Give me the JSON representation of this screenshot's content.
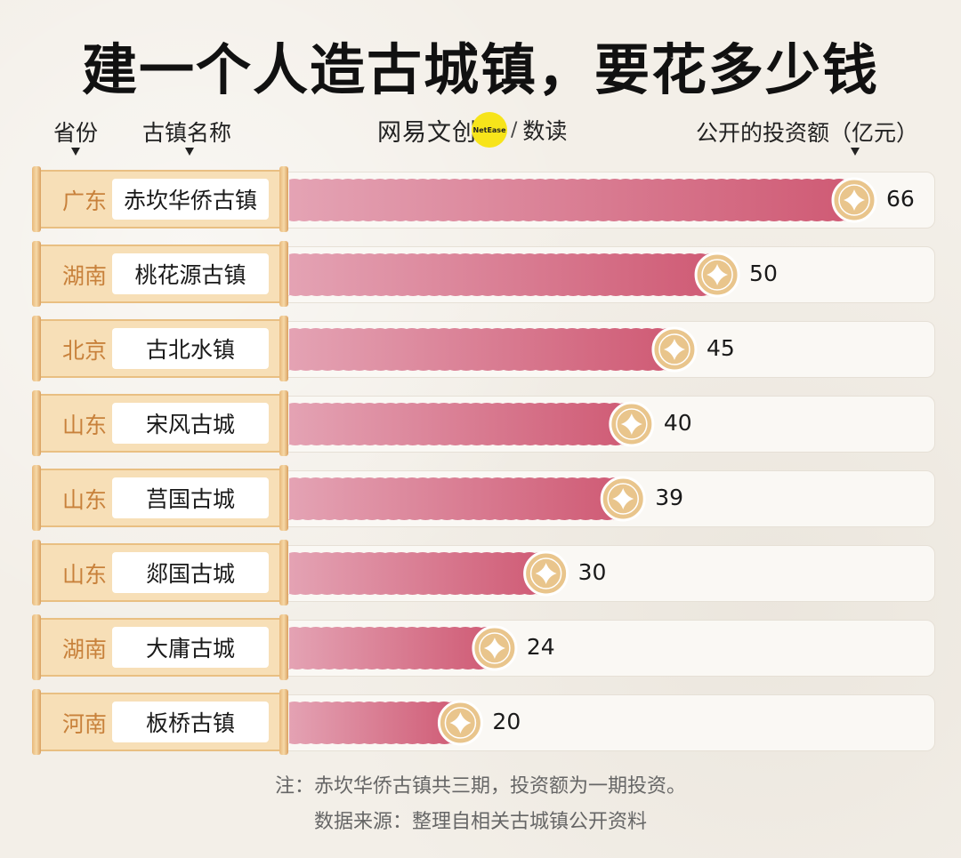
{
  "title": "建一个人造古城镇，要花多少钱",
  "headers": {
    "province": "省份",
    "town_name": "古镇名称",
    "investment": "公开的投资额（亿元）"
  },
  "brand": {
    "name": "网易文创",
    "badge": "NetEase",
    "slash": "/",
    "sub": "数读"
  },
  "colors": {
    "bar_light": "#e4a3b4",
    "bar_dark": "#cf5a74",
    "coin": "#e9c58c",
    "province_text": "#c8813b"
  },
  "chart_data": {
    "type": "bar",
    "orientation": "horizontal",
    "title": "建一个人造古城镇，要花多少钱",
    "categories": [
      "赤坎华侨古镇",
      "桃花源古镇",
      "古北水镇",
      "宋风古城",
      "莒国古城",
      "郯国古城",
      "大庸古城",
      "板桥古镇"
    ],
    "provinces": [
      "广东",
      "湖南",
      "北京",
      "山东",
      "山东",
      "山东",
      "湖南",
      "河南"
    ],
    "values": [
      66,
      50,
      45,
      40,
      39,
      30,
      24,
      20
    ],
    "value_labels": [
      "66",
      "50",
      "45",
      "40",
      "39",
      "30",
      "24",
      "20"
    ],
    "xlim": [
      0,
      66
    ],
    "ylabel": "公开的投资额（亿元）",
    "grid": false,
    "legend": "none"
  },
  "notes": {
    "line1": "注：赤坎华侨古镇共三期，投资额为一期投资。",
    "line2": "数据来源：整理自相关古城镇公开资料"
  }
}
